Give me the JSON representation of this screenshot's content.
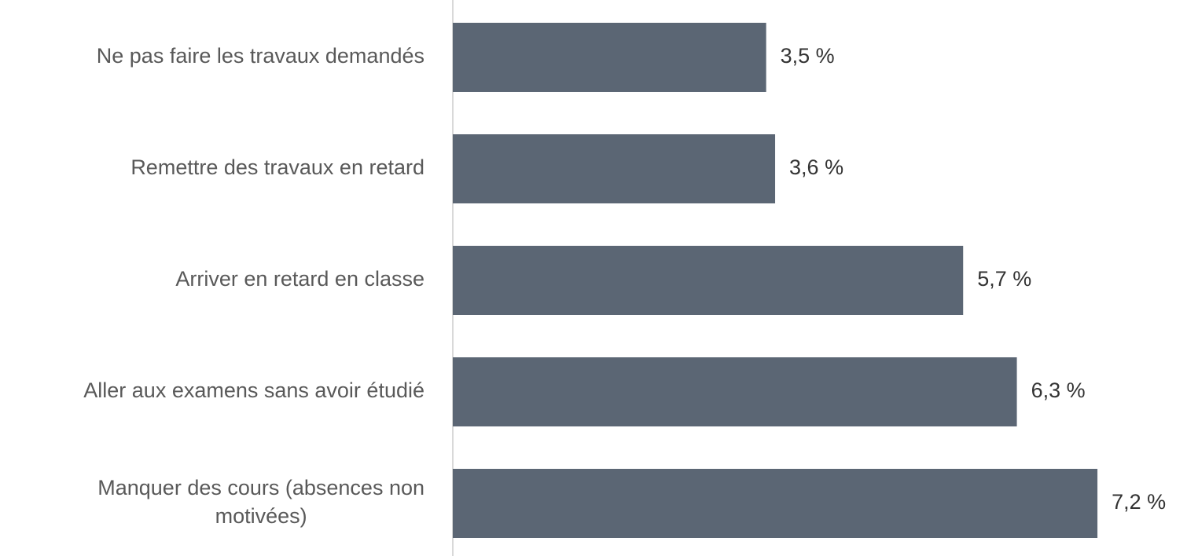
{
  "chart_data": {
    "type": "bar",
    "orientation": "horizontal",
    "categories": [
      "Ne pas faire les travaux demandés",
      "Remettre des travaux en retard",
      "Arriver en retard en classe",
      "Aller aux examens sans avoir étudié",
      "Manquer des cours (absences non motivées)"
    ],
    "values": [
      3.5,
      3.6,
      5.7,
      6.3,
      7.2
    ],
    "value_labels": [
      "3,5 %",
      "3,6 %",
      "5,7 %",
      "6,3 %",
      "7,2 %"
    ],
    "color": "#5b6674"
  }
}
